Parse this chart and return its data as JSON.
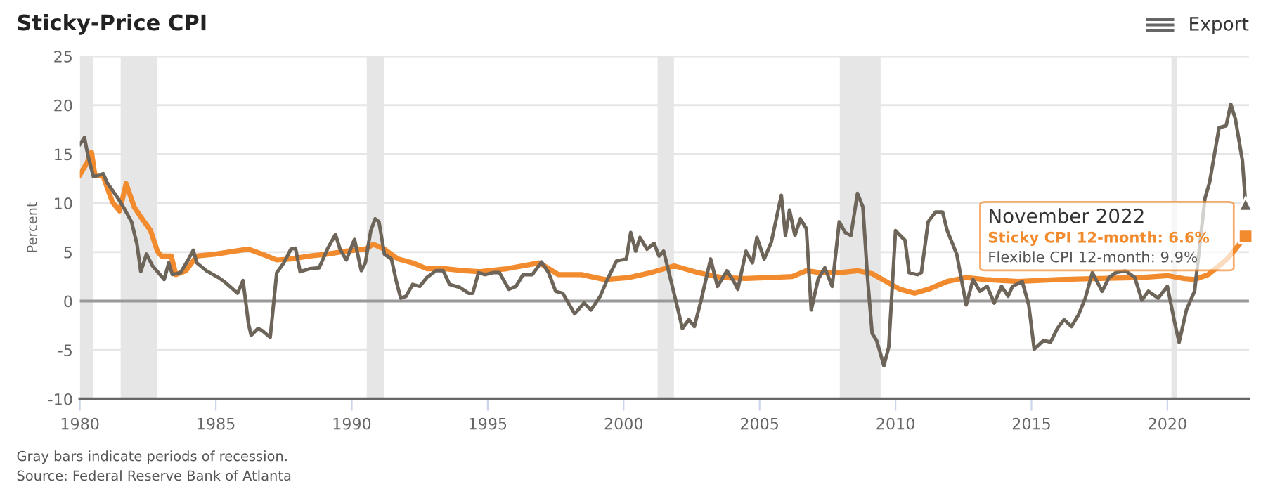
{
  "chart_data": {
    "type": "line",
    "title": "Sticky-Price CPI",
    "ylabel": "Percent",
    "xlim": [
      1980,
      2023
    ],
    "xticks": [
      1980,
      1985,
      1990,
      1995,
      2000,
      2005,
      2010,
      2015,
      2020
    ],
    "ylim": [
      -10,
      25
    ],
    "yticks": [
      -10,
      -5,
      0,
      5,
      10,
      15,
      20,
      25
    ],
    "grid": "y",
    "marker": "none",
    "line_style": "solid",
    "ref_lines": [
      {
        "axis": "y",
        "value": 0,
        "color": "#999999"
      }
    ],
    "bands": [
      {
        "axis": "x",
        "from": 1980.0,
        "to": 1980.5,
        "color": "#e6e6e6"
      },
      {
        "axis": "x",
        "from": 1981.5,
        "to": 1982.85,
        "color": "#e6e6e6"
      },
      {
        "axis": "x",
        "from": 1990.55,
        "to": 1991.2,
        "color": "#e6e6e6"
      },
      {
        "axis": "x",
        "from": 2001.25,
        "to": 2001.85,
        "color": "#e6e6e6"
      },
      {
        "axis": "x",
        "from": 2007.95,
        "to": 2009.45,
        "color": "#e6e6e6"
      },
      {
        "axis": "x",
        "from": 2020.15,
        "to": 2020.35,
        "color": "#e6e6e6"
      }
    ],
    "series": [
      {
        "color": "#f28a2e",
        "x": [
          1980.0,
          1980.26,
          1980.43,
          1980.55,
          1980.86,
          1981.2,
          1981.46,
          1981.7,
          1982.0,
          1982.24,
          1982.6,
          1982.85,
          1983.0,
          1983.36,
          1983.53,
          1983.9,
          1984.3,
          1985.0,
          1985.7,
          1986.2,
          1986.7,
          1987.24,
          1987.76,
          1988.45,
          1989.1,
          1989.8,
          1990.5,
          1990.8,
          1991.2,
          1991.7,
          1992.24,
          1992.76,
          1993.45,
          1994.14,
          1994.66,
          1995.7,
          1996.9,
          1997.6,
          1998.45,
          1999.3,
          2000.2,
          2001.0,
          2001.86,
          2002.74,
          2003.6,
          2004.5,
          2005.35,
          2006.2,
          2006.72,
          2007.24,
          2007.93,
          2008.6,
          2009.14,
          2009.65,
          2010.17,
          2010.7,
          2011.2,
          2011.9,
          2012.6,
          2013.3,
          2014.5,
          2016.0,
          2017.5,
          2019.0,
          2020.0,
          2020.6,
          2021.0,
          2021.5,
          2021.9,
          2022.2,
          2022.5,
          2022.875
        ],
        "values": [
          12.9,
          14.1,
          15.2,
          12.9,
          12.7,
          10.1,
          9.2,
          12.0,
          9.6,
          8.6,
          7.2,
          5.1,
          4.6,
          4.6,
          2.7,
          3.1,
          4.6,
          4.8,
          5.1,
          5.3,
          4.8,
          4.2,
          4.3,
          4.6,
          4.8,
          5.1,
          5.3,
          5.8,
          5.3,
          4.3,
          3.9,
          3.3,
          3.3,
          3.1,
          3.0,
          3.3,
          3.9,
          2.7,
          2.7,
          2.2,
          2.4,
          2.9,
          3.6,
          2.9,
          2.4,
          2.3,
          2.4,
          2.5,
          3.1,
          2.9,
          2.9,
          3.1,
          2.8,
          2.0,
          1.2,
          0.8,
          1.2,
          2.0,
          2.4,
          2.2,
          2.0,
          2.2,
          2.3,
          2.4,
          2.6,
          2.3,
          2.2,
          2.7,
          3.6,
          4.3,
          5.3,
          6.6
        ]
      },
      {
        "color": "#6e655a",
        "x": [
          1980.0,
          1980.17,
          1980.3,
          1980.5,
          1980.86,
          1981.0,
          1981.4,
          1981.6,
          1981.9,
          1982.1,
          1982.24,
          1982.45,
          1982.67,
          1983.1,
          1983.27,
          1983.4,
          1983.7,
          1983.96,
          1984.17,
          1984.3,
          1984.65,
          1985.1,
          1985.35,
          1985.8,
          1986.0,
          1986.2,
          1986.3,
          1986.55,
          1986.7,
          1987.0,
          1987.24,
          1987.5,
          1987.76,
          1987.93,
          1988.1,
          1988.45,
          1988.8,
          1989.1,
          1989.4,
          1989.57,
          1989.8,
          1990.1,
          1990.35,
          1990.5,
          1990.7,
          1990.86,
          1991.0,
          1991.2,
          1991.46,
          1991.64,
          1991.8,
          1992.0,
          1992.24,
          1992.5,
          1992.76,
          1993.1,
          1993.36,
          1993.6,
          1993.97,
          1994.3,
          1994.45,
          1994.66,
          1994.9,
          1995.2,
          1995.43,
          1995.78,
          1996.04,
          1996.3,
          1996.64,
          1996.98,
          1997.24,
          1997.5,
          1997.76,
          1998.2,
          1998.54,
          1998.8,
          1999.14,
          1999.4,
          1999.74,
          2000.1,
          2000.26,
          2000.44,
          2000.6,
          2000.86,
          2001.12,
          2001.3,
          2001.47,
          2001.73,
          2002.0,
          2002.16,
          2002.4,
          2002.6,
          2002.85,
          2003.2,
          2003.45,
          2003.8,
          2004.05,
          2004.2,
          2004.5,
          2004.74,
          2004.9,
          2005.17,
          2005.43,
          2005.8,
          2005.95,
          2006.1,
          2006.3,
          2006.5,
          2006.72,
          2006.9,
          2007.15,
          2007.4,
          2007.67,
          2007.93,
          2008.15,
          2008.36,
          2008.6,
          2008.8,
          2008.97,
          2009.14,
          2009.3,
          2009.45,
          2009.57,
          2009.75,
          2010.0,
          2010.17,
          2010.35,
          2010.5,
          2010.8,
          2010.95,
          2011.2,
          2011.47,
          2011.73,
          2011.9,
          2012.25,
          2012.6,
          2012.85,
          2013.1,
          2013.37,
          2013.63,
          2013.9,
          2014.14,
          2014.3,
          2014.66,
          2014.9,
          2015.1,
          2015.45,
          2015.7,
          2015.95,
          2016.2,
          2016.47,
          2016.73,
          2016.98,
          2017.24,
          2017.6,
          2017.85,
          2018.1,
          2018.45,
          2018.8,
          2019.06,
          2019.3,
          2019.66,
          2020.0,
          2020.26,
          2020.43,
          2020.7,
          2021.0,
          2021.38,
          2021.55,
          2021.9,
          2022.16,
          2022.33,
          2022.5,
          2022.76,
          2022.875
        ],
        "values": [
          16.0,
          16.7,
          14.8,
          12.7,
          13.0,
          12.1,
          10.5,
          9.6,
          8.1,
          5.8,
          3.0,
          4.8,
          3.6,
          2.2,
          3.9,
          2.7,
          2.9,
          4.1,
          5.2,
          3.9,
          3.1,
          2.4,
          1.9,
          0.8,
          2.1,
          -2.3,
          -3.5,
          -2.8,
          -3.0,
          -3.7,
          2.9,
          3.9,
          5.3,
          5.4,
          3.0,
          3.3,
          3.4,
          5.3,
          6.8,
          5.3,
          4.2,
          6.3,
          3.1,
          3.9,
          7.2,
          8.4,
          8.1,
          4.8,
          4.3,
          2.0,
          0.3,
          0.5,
          1.7,
          1.5,
          2.4,
          3.1,
          3.1,
          1.7,
          1.4,
          0.8,
          0.8,
          2.9,
          2.7,
          2.9,
          2.9,
          1.2,
          1.5,
          2.7,
          2.7,
          4.0,
          2.9,
          1.0,
          0.8,
          -1.3,
          -0.2,
          -0.9,
          0.5,
          2.2,
          4.1,
          4.3,
          7.0,
          5.1,
          6.5,
          5.3,
          5.9,
          4.6,
          5.1,
          2.2,
          -0.9,
          -2.8,
          -1.9,
          -2.6,
          0.1,
          4.3,
          1.5,
          3.1,
          2.0,
          1.2,
          5.1,
          3.9,
          6.5,
          4.3,
          6.0,
          10.8,
          6.7,
          9.3,
          6.7,
          8.4,
          7.4,
          -0.9,
          2.2,
          3.4,
          1.5,
          8.1,
          7.0,
          6.7,
          11.0,
          9.6,
          2.4,
          -3.3,
          -4.0,
          -5.4,
          -6.6,
          -4.7,
          7.2,
          6.7,
          6.2,
          2.9,
          2.7,
          2.9,
          8.1,
          9.1,
          9.1,
          7.2,
          4.8,
          -0.4,
          2.2,
          1.0,
          1.5,
          -0.2,
          1.5,
          0.5,
          1.5,
          2.0,
          -0.4,
          -4.9,
          -4.0,
          -4.2,
          -2.8,
          -1.9,
          -2.6,
          -1.4,
          0.3,
          2.9,
          1.0,
          2.4,
          2.9,
          3.1,
          2.4,
          0.1,
          1.0,
          0.3,
          1.5,
          -2.1,
          -4.2,
          -0.9,
          1.0,
          10.5,
          12.1,
          17.7,
          17.9,
          20.1,
          18.6,
          14.3,
          9.9
        ]
      }
    ],
    "annotations": [
      "Export",
      "November 2022",
      "Sticky CPI 12-month: 6.6%",
      "Flexible CPI 12-month: 9.9%",
      "Gray bars indicate periods of recession.",
      "Source: Federal Reserve Bank of Atlanta"
    ]
  }
}
